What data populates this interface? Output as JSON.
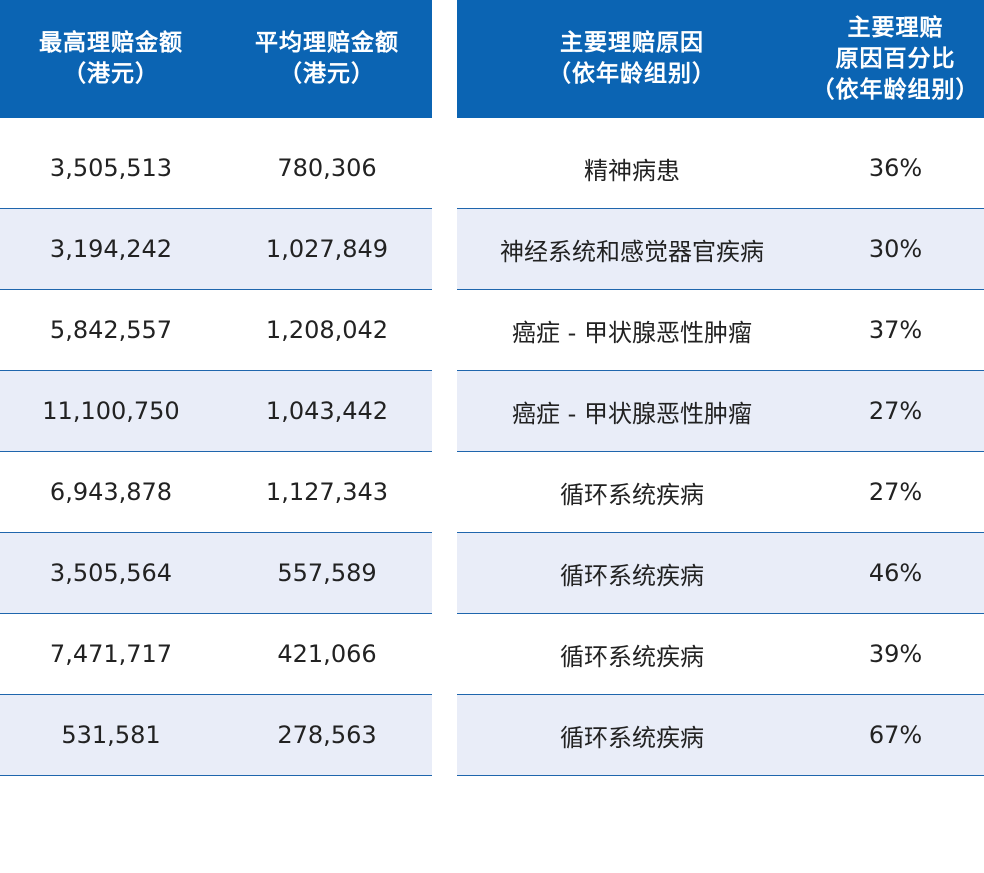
{
  "left_table": {
    "headers": [
      {
        "line1": "最高理赔金额",
        "line2": "（港元）"
      },
      {
        "line1": "平均理赔金额",
        "line2": "（港元）"
      }
    ],
    "rows": [
      [
        "3,505,513",
        "780,306"
      ],
      [
        "3,194,242",
        "1,027,849"
      ],
      [
        "5,842,557",
        "1,208,042"
      ],
      [
        "11,100,750",
        "1,043,442"
      ],
      [
        "6,943,878",
        "1,127,343"
      ],
      [
        "3,505,564",
        "557,589"
      ],
      [
        "7,471,717",
        "421,066"
      ],
      [
        "531,581",
        "278,563"
      ]
    ]
  },
  "right_table": {
    "headers": [
      {
        "line1": "主要理赔原因",
        "line2": "（依年龄组别）"
      },
      {
        "line1": "主要理赔",
        "line2": "原因百分比",
        "line3": "（依年龄组别）"
      }
    ],
    "rows": [
      [
        "精神病患",
        "36%"
      ],
      [
        "神经系统和感觉器官疾病",
        "30%"
      ],
      [
        "癌症 - 甲状腺恶性肿瘤",
        "37%"
      ],
      [
        "癌症 - 甲状腺恶性肿瘤",
        "27%"
      ],
      [
        "循环系统疾病",
        "27%"
      ],
      [
        "循环系统疾病",
        "46%"
      ],
      [
        "循环系统疾病",
        "39%"
      ],
      [
        "循环系统疾病",
        "67%"
      ]
    ]
  },
  "colors": {
    "header_bg": "#0b64b3",
    "header_text": "#ffffff",
    "row_alt_bg": "#e9edf8",
    "row_border": "#1f66ad"
  }
}
